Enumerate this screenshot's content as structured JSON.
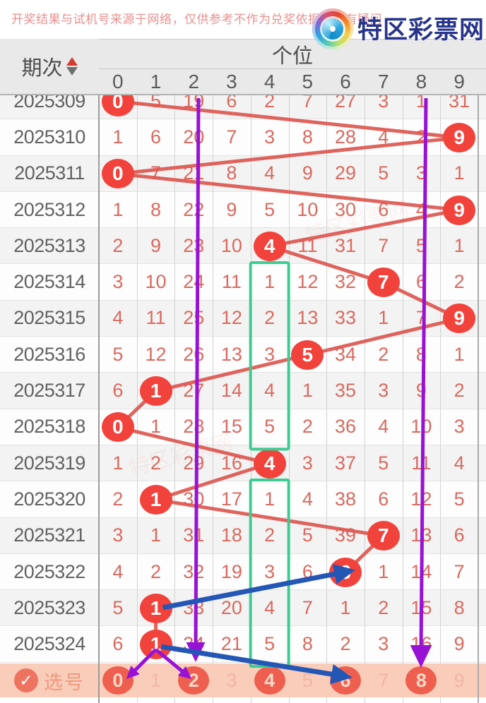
{
  "page": {
    "disclaimer": "开奖结果与试机号来源于网络，仅供参考不作为兑奖依据。如有疑问",
    "logo_text": "特区彩票网",
    "logo_watermark": "www.tqcp.net"
  },
  "table": {
    "period_header": "期次",
    "group_header": "个位",
    "digit_headers": [
      "0",
      "1",
      "2",
      "3",
      "4",
      "5",
      "6",
      "7",
      "8",
      "9"
    ],
    "rows": [
      {
        "period": "2025309",
        "winner": 0,
        "values": [
          "0",
          "5",
          "19",
          "6",
          "2",
          "7",
          "27",
          "3",
          "1",
          "31"
        ]
      },
      {
        "period": "2025310",
        "winner": 9,
        "values": [
          "1",
          "6",
          "20",
          "7",
          "3",
          "8",
          "28",
          "4",
          "2",
          "9"
        ]
      },
      {
        "period": "2025311",
        "winner": 0,
        "values": [
          "0",
          "7",
          "21",
          "8",
          "4",
          "9",
          "29",
          "5",
          "3",
          "1"
        ]
      },
      {
        "period": "2025312",
        "winner": 9,
        "values": [
          "1",
          "8",
          "22",
          "9",
          "5",
          "10",
          "30",
          "6",
          "4",
          "9"
        ]
      },
      {
        "period": "2025313",
        "winner": 4,
        "values": [
          "2",
          "9",
          "23",
          "10",
          "4",
          "11",
          "31",
          "7",
          "5",
          "1"
        ]
      },
      {
        "period": "2025314",
        "winner": 7,
        "values": [
          "3",
          "10",
          "24",
          "11",
          "1",
          "12",
          "32",
          "7",
          "6",
          "2"
        ]
      },
      {
        "period": "2025315",
        "winner": 9,
        "values": [
          "4",
          "11",
          "25",
          "12",
          "2",
          "13",
          "33",
          "1",
          "7",
          "9"
        ]
      },
      {
        "period": "2025316",
        "winner": 5,
        "values": [
          "5",
          "12",
          "26",
          "13",
          "3",
          "5",
          "34",
          "2",
          "8",
          "1"
        ]
      },
      {
        "period": "2025317",
        "winner": 1,
        "values": [
          "6",
          "1",
          "27",
          "14",
          "4",
          "1",
          "35",
          "3",
          "9",
          "2"
        ]
      },
      {
        "period": "2025318",
        "winner": 0,
        "values": [
          "0",
          "1",
          "28",
          "15",
          "5",
          "2",
          "36",
          "4",
          "10",
          "3"
        ]
      },
      {
        "period": "2025319",
        "winner": 4,
        "values": [
          "1",
          "2",
          "29",
          "16",
          "4",
          "3",
          "37",
          "5",
          "11",
          "4"
        ]
      },
      {
        "period": "2025320",
        "winner": 1,
        "values": [
          "2",
          "1",
          "30",
          "17",
          "1",
          "4",
          "38",
          "6",
          "12",
          "5"
        ]
      },
      {
        "period": "2025321",
        "winner": 7,
        "values": [
          "3",
          "1",
          "31",
          "18",
          "2",
          "5",
          "39",
          "7",
          "13",
          "6"
        ]
      },
      {
        "period": "2025322",
        "winner": 6,
        "values": [
          "4",
          "2",
          "32",
          "19",
          "3",
          "6",
          "6",
          "1",
          "14",
          "7"
        ]
      },
      {
        "period": "2025323",
        "winner": 1,
        "values": [
          "5",
          "1",
          "33",
          "20",
          "4",
          "7",
          "1",
          "2",
          "15",
          "8"
        ]
      },
      {
        "period": "2025324",
        "winner": 1,
        "values": [
          "6",
          "1",
          "34",
          "21",
          "5",
          "8",
          "2",
          "3",
          "16",
          "9"
        ]
      }
    ],
    "selection": {
      "label": "选号",
      "digits": [
        "0",
        "1",
        "2",
        "3",
        "4",
        "5",
        "6",
        "7",
        "8",
        "9"
      ],
      "selected": [
        0,
        2,
        4,
        6,
        8
      ]
    }
  },
  "annotations": {
    "trend_line_note": "red line connects winning digit of each period",
    "purple_vertical_arrows": [
      {
        "column": 2
      },
      {
        "column": 8
      }
    ],
    "green_boxes": [
      {
        "column": 4,
        "from_period": "2025314",
        "to_period": "2025318"
      },
      {
        "column": 4,
        "from_period": "2025320",
        "to_period": "2025324"
      }
    ],
    "blue_arrows": [
      {
        "from_period": "2025323",
        "from_column": 1,
        "to_period": "2025322",
        "to_column": 6
      },
      {
        "from_period": "2025324",
        "from_column": 1,
        "to_selection_digit": 6
      }
    ],
    "purple_fork_arrows": [
      {
        "from_period": "2025324",
        "from_column": 1,
        "to_selection_digit": 0
      },
      {
        "from_period": "2025324",
        "from_column": 1,
        "to_selection_digit": 2
      }
    ]
  },
  "colors": {
    "winner_circle": "#f2423c",
    "trend_line": "#dd5750",
    "purple": "#9812d6",
    "green_box": "#3ecb93",
    "blue_arrow": "#2457b5",
    "cell_text": "#d96a5f",
    "selection_bg": "#f9cdb9",
    "selection_circle": "#ee5f4f"
  }
}
